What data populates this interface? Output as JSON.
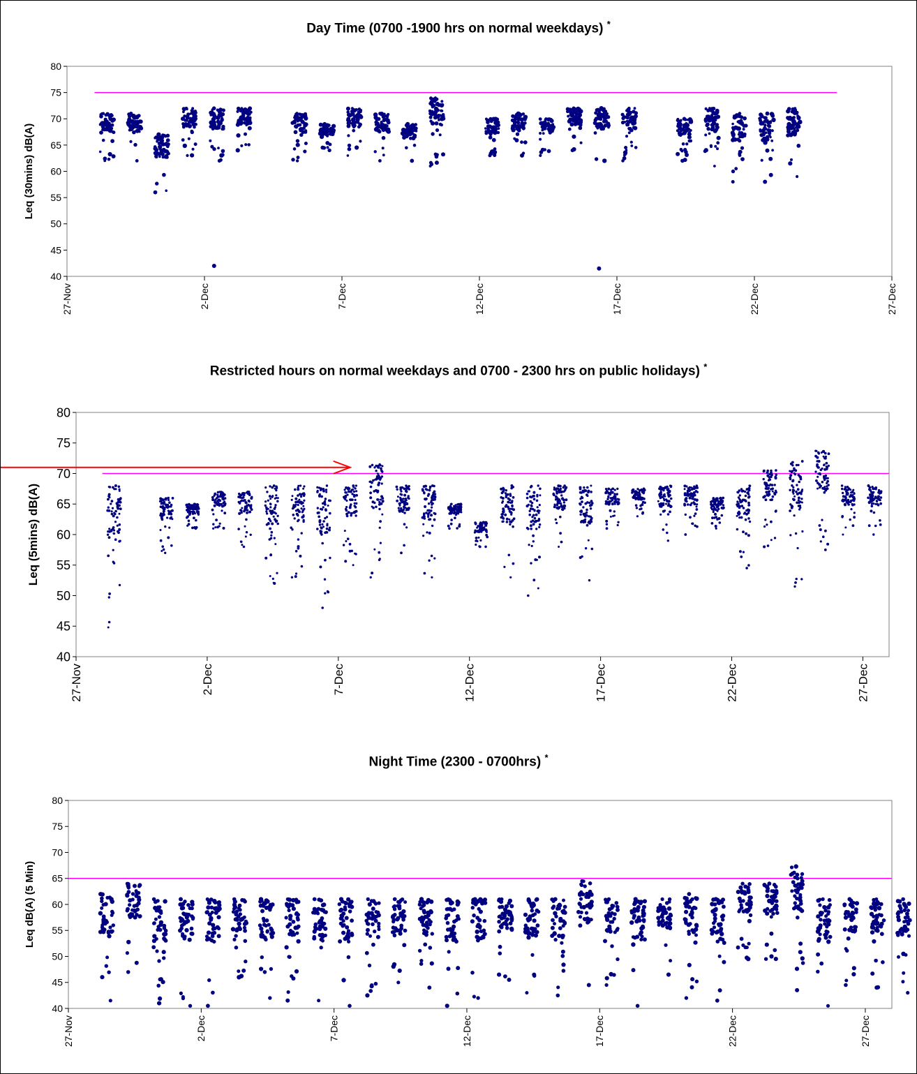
{
  "chart_data": [
    {
      "type": "scatter",
      "title": "Day Time (0700 -1900 hrs on normal weekdays)",
      "title_mark": "*",
      "ylabel": "Leq (30mins) dB(A)",
      "xlabel": "",
      "ylim": [
        40,
        80
      ],
      "yticks": [
        "40",
        "45",
        "50",
        "55",
        "60",
        "65",
        "70",
        "75",
        "80"
      ],
      "xlim": [
        "27-Nov",
        "27-Dec"
      ],
      "xticks": [
        "27-Nov",
        "2-Dec",
        "7-Dec",
        "12-Dec",
        "17-Dec",
        "22-Dec",
        "27-Dec"
      ],
      "limit_line": {
        "value": 75,
        "from": "28-Nov",
        "to": "25-Dec",
        "color": "#ff00ff"
      },
      "marker_color": "#000080",
      "grid": false,
      "series_clusters": [
        {
          "day": "28-Nov",
          "min": 62,
          "max": 71
        },
        {
          "day": "29-Nov",
          "min": 62,
          "max": 71
        },
        {
          "day": "30-Nov",
          "min": 56,
          "max": 67
        },
        {
          "day": "1-Dec",
          "min": 63,
          "max": 72
        },
        {
          "day": "2-Dec",
          "min": 62,
          "max": 72
        },
        {
          "day": "3-Dec",
          "min": 64,
          "max": 72
        },
        {
          "day": "5-Dec",
          "min": 62,
          "max": 71
        },
        {
          "day": "6-Dec",
          "min": 64,
          "max": 69
        },
        {
          "day": "7-Dec",
          "min": 63,
          "max": 72
        },
        {
          "day": "8-Dec",
          "min": 62,
          "max": 71
        },
        {
          "day": "9-Dec",
          "min": 62,
          "max": 69
        },
        {
          "day": "10-Dec",
          "min": 61,
          "max": 74
        },
        {
          "day": "12-Dec",
          "min": 63,
          "max": 70
        },
        {
          "day": "13-Dec",
          "min": 63,
          "max": 71
        },
        {
          "day": "14-Dec",
          "min": 63,
          "max": 70
        },
        {
          "day": "15-Dec",
          "min": 64,
          "max": 72
        },
        {
          "day": "16-Dec",
          "min": 62,
          "max": 72
        },
        {
          "day": "17-Dec",
          "min": 62,
          "max": 72
        },
        {
          "day": "19-Dec",
          "min": 62,
          "max": 70
        },
        {
          "day": "20-Dec",
          "min": 61,
          "max": 72
        },
        {
          "day": "21-Dec",
          "min": 58,
          "max": 71
        },
        {
          "day": "22-Dec",
          "min": 58,
          "max": 71
        },
        {
          "day": "23-Dec",
          "min": 59,
          "max": 72
        }
      ],
      "outliers": [
        {
          "day": "2-Dec",
          "value": 42
        },
        {
          "day": "16-Dec",
          "value": 41.5
        }
      ]
    },
    {
      "type": "scatter",
      "title": "Restricted hours on normal weekdays and 0700 - 2300 hrs on public holidays)",
      "title_mark": "*",
      "ylabel": "Leq (5mins) dB(A)",
      "xlabel": "",
      "ylim": [
        40,
        80
      ],
      "yticks": [
        "40",
        "45",
        "50",
        "55",
        "60",
        "65",
        "70",
        "75",
        "80"
      ],
      "xlim": [
        "27-Nov",
        "28-Dec"
      ],
      "xticks": [
        "27-Nov",
        "2-Dec",
        "7-Dec",
        "12-Dec",
        "17-Dec",
        "22-Dec",
        "27-Dec"
      ],
      "limit_line": {
        "value": 70,
        "from": "28-Nov",
        "to": "28-Dec",
        "color": "#ff00ff"
      },
      "marker_color": "#000080",
      "grid": false,
      "annotation_arrow": {
        "points_to_day": "7-Dec",
        "value": 71,
        "color": "#ff0000"
      },
      "series_clusters": [
        {
          "day": "28-Nov",
          "min": 44.8,
          "max": 68
        },
        {
          "day": "30-Nov",
          "min": 57,
          "max": 66
        },
        {
          "day": "1-Dec",
          "min": 61,
          "max": 65
        },
        {
          "day": "2-Dec",
          "min": 61,
          "max": 67
        },
        {
          "day": "3-Dec",
          "min": 58,
          "max": 67
        },
        {
          "day": "4-Dec",
          "min": 52,
          "max": 68
        },
        {
          "day": "5-Dec",
          "min": 53,
          "max": 68
        },
        {
          "day": "6-Dec",
          "min": 48,
          "max": 68
        },
        {
          "day": "7-Dec",
          "min": 55,
          "max": 68
        },
        {
          "day": "8-Dec",
          "min": 53,
          "max": 71.5
        },
        {
          "day": "9-Dec",
          "min": 57,
          "max": 68
        },
        {
          "day": "10-Dec",
          "min": 53,
          "max": 68
        },
        {
          "day": "11-Dec",
          "min": 61,
          "max": 65
        },
        {
          "day": "12-Dec",
          "min": 58,
          "max": 62
        },
        {
          "day": "13-Dec",
          "min": 53,
          "max": 68
        },
        {
          "day": "14-Dec",
          "min": 50,
          "max": 68
        },
        {
          "day": "15-Dec",
          "min": 58,
          "max": 68
        },
        {
          "day": "16-Dec",
          "min": 52.5,
          "max": 68
        },
        {
          "day": "17-Dec",
          "min": 61,
          "max": 67.5
        },
        {
          "day": "18-Dec",
          "min": 63,
          "max": 67.5
        },
        {
          "day": "19-Dec",
          "min": 59,
          "max": 68
        },
        {
          "day": "20-Dec",
          "min": 60,
          "max": 68
        },
        {
          "day": "21-Dec",
          "min": 61,
          "max": 66
        },
        {
          "day": "22-Dec",
          "min": 54.5,
          "max": 68
        },
        {
          "day": "23-Dec",
          "min": 58,
          "max": 70.5
        },
        {
          "day": "24-Dec",
          "min": 51.5,
          "max": 72
        },
        {
          "day": "25-Dec",
          "min": 57.5,
          "max": 73.7
        },
        {
          "day": "26-Dec",
          "min": 60,
          "max": 68
        },
        {
          "day": "27-Dec",
          "min": 60,
          "max": 68
        }
      ]
    },
    {
      "type": "scatter",
      "title": "Night Time (2300 - 0700hrs)",
      "title_mark": "*",
      "ylabel": "Leq dB(A) (5 Min)",
      "xlabel": "",
      "ylim": [
        40,
        80
      ],
      "yticks": [
        "40",
        "45",
        "50",
        "55",
        "60",
        "65",
        "70",
        "75",
        "80"
      ],
      "xlim": [
        "27-Nov",
        "28-Dec"
      ],
      "xticks": [
        "27-Nov",
        "2-Dec",
        "7-Dec",
        "12-Dec",
        "17-Dec",
        "22-Dec",
        "27-Dec"
      ],
      "limit_line": {
        "value": 65,
        "from": "27-Nov",
        "to": "28-Dec",
        "color": "#ff00ff"
      },
      "marker_color": "#000080",
      "grid": false,
      "series_clusters": [
        {
          "day": "28-Nov",
          "min": 41.5,
          "max": 62
        },
        {
          "day": "29-Nov",
          "min": 47,
          "max": 64
        },
        {
          "day": "30-Nov",
          "min": 41,
          "max": 61
        },
        {
          "day": "1-Dec",
          "min": 40.5,
          "max": 61
        },
        {
          "day": "2-Dec",
          "min": 40.5,
          "max": 61
        },
        {
          "day": "3-Dec",
          "min": 46,
          "max": 61
        },
        {
          "day": "4-Dec",
          "min": 42,
          "max": 61
        },
        {
          "day": "5-Dec",
          "min": 41.5,
          "max": 61
        },
        {
          "day": "6-Dec",
          "min": 41.5,
          "max": 61
        },
        {
          "day": "7-Dec",
          "min": 40.5,
          "max": 61
        },
        {
          "day": "8-Dec",
          "min": 42.5,
          "max": 61
        },
        {
          "day": "9-Dec",
          "min": 45,
          "max": 61
        },
        {
          "day": "10-Dec",
          "min": 44,
          "max": 61
        },
        {
          "day": "11-Dec",
          "min": 40.5,
          "max": 61
        },
        {
          "day": "12-Dec",
          "min": 42,
          "max": 61
        },
        {
          "day": "13-Dec",
          "min": 45.5,
          "max": 61
        },
        {
          "day": "14-Dec",
          "min": 43,
          "max": 61
        },
        {
          "day": "15-Dec",
          "min": 42.5,
          "max": 61
        },
        {
          "day": "16-Dec",
          "min": 44.5,
          "max": 64.5
        },
        {
          "day": "17-Dec",
          "min": 44.5,
          "max": 61
        },
        {
          "day": "18-Dec",
          "min": 40.5,
          "max": 61
        },
        {
          "day": "19-Dec",
          "min": 46.5,
          "max": 61
        },
        {
          "day": "20-Dec",
          "min": 42,
          "max": 62
        },
        {
          "day": "21-Dec",
          "min": 41.5,
          "max": 61
        },
        {
          "day": "22-Dec",
          "min": 49.5,
          "max": 64
        },
        {
          "day": "23-Dec",
          "min": 49.5,
          "max": 64
        },
        {
          "day": "24-Dec",
          "min": 43.5,
          "max": 67.3
        },
        {
          "day": "25-Dec",
          "min": 40.5,
          "max": 61
        },
        {
          "day": "26-Dec",
          "min": 44.5,
          "max": 61
        },
        {
          "day": "27-Dec",
          "min": 44,
          "max": 61
        },
        {
          "day": "28-Dec",
          "min": 43,
          "max": 61
        }
      ]
    }
  ]
}
